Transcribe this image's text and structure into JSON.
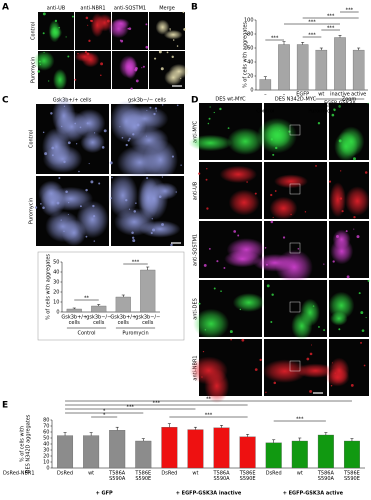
{
  "figure": {
    "panel_labels": [
      "A",
      "B",
      "C",
      "D",
      "E"
    ],
    "panel_a": {
      "columns": [
        "anti-UB",
        "anti-NBR1",
        "anti-SQSTM1",
        "Merge"
      ],
      "rows": [
        "Control",
        "Puromycin"
      ]
    },
    "panel_c": {
      "columns": [
        "Gsk3b+/+ cells",
        "gsk3b−/− cells"
      ],
      "rows": [
        "Control",
        "Puromycin"
      ]
    },
    "panel_d": {
      "columns": [
        "DES wt-MYC",
        "DES N342D-MYC",
        "Zoom"
      ],
      "rows": [
        "anti-MYC",
        "anti-UB",
        "anti-SQSTM1",
        "anti-DES",
        "anti-NBR1"
      ]
    }
  },
  "chart_data": [
    {
      "type": "bar",
      "y_label": "% of cells with aggregates",
      "categories": [
        "–",
        "–",
        "EGFP",
        "wt",
        "inactive",
        "active"
      ],
      "values": [
        15,
        65,
        65,
        57,
        75,
        57
      ],
      "errors": [
        4,
        4,
        3,
        3,
        3,
        3
      ],
      "color": "#a6a6a6",
      "ylim": [
        0,
        100
      ],
      "yticks": [
        0,
        20,
        40,
        60,
        80,
        100
      ],
      "groups": [
        "Control",
        "Puromycin",
        "EGFP-GSK3A"
      ],
      "annotations": [
        "***",
        "***",
        "***",
        "***",
        "***",
        "***"
      ]
    },
    {
      "type": "bar",
      "y_label": "% of cells with aggregates",
      "categories": [
        [
          "Gsk3b+/+",
          "cells"
        ],
        [
          "gsk3b−/−",
          "cells"
        ],
        [
          "Gsk3b+/+",
          "cells"
        ],
        [
          "gsk3b−/−",
          "cells"
        ]
      ],
      "values": [
        3,
        6,
        15,
        42
      ],
      "errors": [
        1,
        1.5,
        2,
        3
      ],
      "color": "#a6a6a6",
      "ylim": [
        0,
        50
      ],
      "yticks": [
        0,
        10,
        20,
        30,
        40,
        50
      ],
      "groups": [
        "Control",
        "Puromycin"
      ],
      "annotations": [
        "**",
        "***"
      ]
    },
    {
      "type": "bar",
      "y_label": [
        "% of cells with",
        "DES N342D aggregates"
      ],
      "row_label": "DsRed-NBR1",
      "categories": [
        [
          "DsRed"
        ],
        [
          "wt"
        ],
        [
          "T586A",
          "S590A"
        ],
        [
          "T586E",
          "S590E"
        ]
      ],
      "series": [
        {
          "name": "+ GFP",
          "color": "#8c8c8c",
          "values": [
            54,
            54,
            63,
            45
          ],
          "errors": [
            5,
            5,
            5,
            4
          ]
        },
        {
          "name": "+ EGFP-GSK3A inactive",
          "color": "#ee1111",
          "values": [
            68,
            64,
            67,
            52
          ],
          "errors": [
            6,
            4,
            4,
            4
          ]
        },
        {
          "name": "+ EGFP-GSK3A active",
          "color": "#119911",
          "values": [
            42,
            45,
            55,
            45
          ],
          "errors": [
            5,
            5,
            4,
            4
          ]
        }
      ],
      "ylim": [
        0,
        80
      ],
      "yticks": [
        0,
        10,
        20,
        30,
        40,
        50,
        60,
        70,
        80
      ],
      "annotations": [
        "**",
        "***",
        "***",
        "*",
        "*",
        "***",
        "***"
      ]
    }
  ]
}
